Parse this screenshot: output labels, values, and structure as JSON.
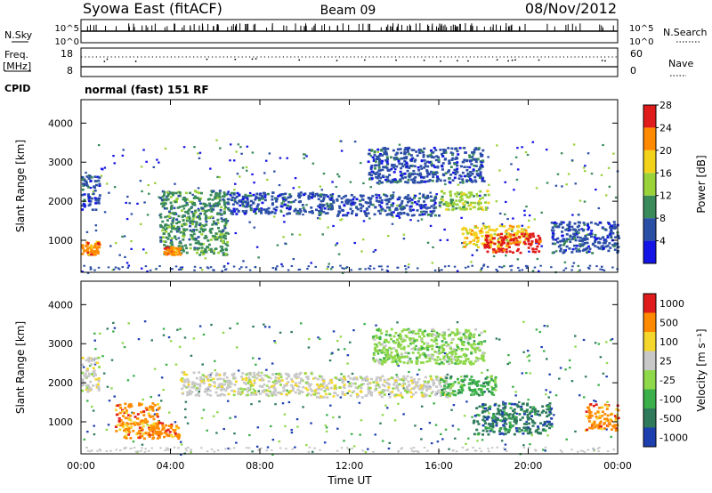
{
  "header": {
    "station": "Syowa East (fitACF)",
    "beam": "Beam 09",
    "date": "08/Nov/2012"
  },
  "strip_labels": {
    "nsky": "N.Sky",
    "nsearch": "N.Search",
    "freq": "Freq.",
    "freq_unit": "[MHz]",
    "nave": "Nave",
    "cpid": "CPID",
    "cpid_value": "normal (fast) 151 RF",
    "nsky_ticks": [
      "10^5",
      "10^0"
    ],
    "nsearch_ticks": [
      "10^5",
      "10^0"
    ],
    "freq_ticks": [
      "18",
      "8"
    ],
    "nave_ticks": [
      "60",
      "0"
    ]
  },
  "chart_data": [
    {
      "type": "heatmap",
      "name": "power",
      "xlabel": "",
      "ylabel": "Slant Range [km]",
      "xlim": [
        0,
        24
      ],
      "ylim": [
        180,
        4600
      ],
      "y_ticks": [
        "1000",
        "2000",
        "3000",
        "4000"
      ],
      "colorbar_label": "Power [dB]",
      "colorbar_ticks": [
        "4",
        "8",
        "12",
        "16",
        "20",
        "24",
        "28"
      ],
      "colors": [
        "#1414e6",
        "#2c4fa6",
        "#3a8a5a",
        "#9ad23a",
        "#f3d21c",
        "#ff8a00",
        "#e01b1b"
      ],
      "features": [
        {
          "x": [
            0.0,
            0.8
          ],
          "y": [
            1800,
            2700
          ],
          "level": 1
        },
        {
          "x": [
            0.0,
            0.8
          ],
          "y": [
            650,
            1000
          ],
          "level": 5
        },
        {
          "x": [
            3.5,
            6.5
          ],
          "y": [
            650,
            2300
          ],
          "level": 2
        },
        {
          "x": [
            3.6,
            4.4
          ],
          "y": [
            650,
            850
          ],
          "level": 5
        },
        {
          "x": [
            6.5,
            10.5
          ],
          "y": [
            1700,
            2250
          ],
          "level": 1
        },
        {
          "x": [
            10.5,
            16.0
          ],
          "y": [
            1650,
            2200
          ],
          "level": 1
        },
        {
          "x": [
            12.8,
            18.0
          ],
          "y": [
            2500,
            3400
          ],
          "level": 1
        },
        {
          "x": [
            16.0,
            18.2
          ],
          "y": [
            1800,
            2300
          ],
          "level": 3
        },
        {
          "x": [
            17.0,
            20.0
          ],
          "y": [
            850,
            1400
          ],
          "level": 4
        },
        {
          "x": [
            18.0,
            20.5
          ],
          "y": [
            700,
            1200
          ],
          "level": 6
        },
        {
          "x": [
            21.0,
            24.0
          ],
          "y": [
            700,
            1500
          ],
          "level": 1
        }
      ]
    },
    {
      "type": "heatmap",
      "name": "velocity",
      "xlabel": "Time UT",
      "ylabel": "Slant Range [km]",
      "xlim": [
        0,
        24
      ],
      "ylim": [
        180,
        4600
      ],
      "x_ticks": [
        "00:00",
        "04:00",
        "08:00",
        "12:00",
        "16:00",
        "20:00",
        "00:00"
      ],
      "y_ticks": [
        "1000",
        "2000",
        "3000",
        "4000"
      ],
      "colorbar_label": "Velocity [m s⁻¹]",
      "colorbar_ticks": [
        "1000",
        "500",
        "100",
        "25",
        "-25",
        "-100",
        "-500",
        "-1000"
      ],
      "colors": [
        "#1e3fb0",
        "#2e7a5a",
        "#3bb04a",
        "#8fd84a",
        "#c8c8c8",
        "#f5d72c",
        "#ff8a00",
        "#e01b1b"
      ],
      "features": [
        {
          "x": [
            0.0,
            0.8
          ],
          "y": [
            1800,
            2700
          ],
          "level": 4
        },
        {
          "x": [
            1.5,
            3.5
          ],
          "y": [
            600,
            1500
          ],
          "level": 6
        },
        {
          "x": [
            3.0,
            4.4
          ],
          "y": [
            600,
            1000
          ],
          "level": 6
        },
        {
          "x": [
            4.4,
            10.5
          ],
          "y": [
            1700,
            2300
          ],
          "level": 4
        },
        {
          "x": [
            10.5,
            16.5
          ],
          "y": [
            1650,
            2200
          ],
          "level": 4
        },
        {
          "x": [
            13.0,
            18.0
          ],
          "y": [
            2500,
            3400
          ],
          "level": 3
        },
        {
          "x": [
            16.0,
            18.5
          ],
          "y": [
            1700,
            2200
          ],
          "level": 2
        },
        {
          "x": [
            17.5,
            21.0
          ],
          "y": [
            700,
            1500
          ],
          "level": 1
        },
        {
          "x": [
            22.5,
            24.0
          ],
          "y": [
            800,
            1500
          ],
          "level": 6
        }
      ]
    }
  ]
}
